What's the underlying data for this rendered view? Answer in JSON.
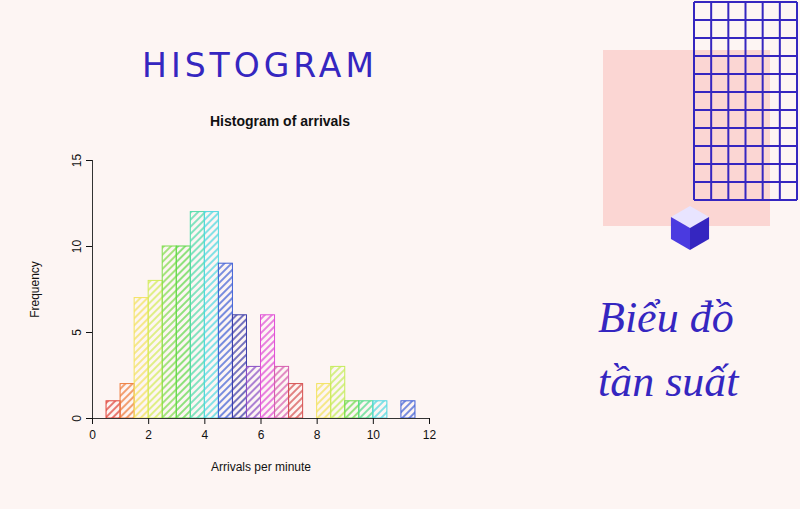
{
  "heading": "HISTOGRAM",
  "caption_lines": [
    "Biểu đồ",
    "tần suất"
  ],
  "chart_data": {
    "type": "histogram",
    "title": "Histogram of arrivals",
    "x_label": "Arrivals per minute",
    "y_label": "Frequency",
    "bins": [
      0.5,
      1,
      1.5,
      2,
      2.5,
      3,
      3.5,
      4,
      4.5,
      5,
      5.5,
      6,
      6.5,
      7,
      7.5,
      8,
      8.5,
      9,
      9.5,
      10,
      10.5,
      11,
      11.5
    ],
    "values": [
      1,
      2,
      7,
      8,
      10,
      10,
      12,
      12,
      9,
      6,
      3,
      6,
      3,
      2,
      0,
      2,
      3,
      1,
      1,
      1,
      0,
      1
    ],
    "colors": [
      "#e0443a",
      "#ee7b3a",
      "#f3e35e",
      "#d3ec58",
      "#7fdd4c",
      "#5fd84a",
      "#4fdcab",
      "#4fd8e0",
      "#3f5fd6",
      "#3a3aa8",
      "#8a4fc6",
      "#e04fd6",
      "#d65fb0",
      "#d64f4f",
      "#d64f4f",
      "#f3e35e",
      "#c5ec5a",
      "#6edc4f",
      "#4fdc8a",
      "#4fd8e0",
      "#4f8ae0",
      "#3f5fd6"
    ],
    "xlim": [
      0,
      12
    ],
    "xticks": [
      0,
      2,
      4,
      6,
      8,
      10,
      12
    ],
    "ylim": [
      0,
      15
    ],
    "yticks": [
      0,
      5,
      10,
      15
    ]
  }
}
